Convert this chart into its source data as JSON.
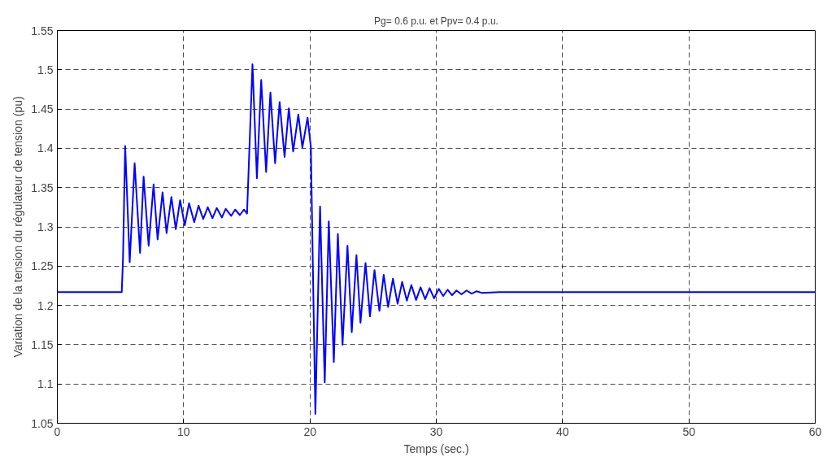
{
  "chart_data": {
    "type": "line",
    "title": "Pg= 0.6 p.u. et Ppv= 0.4 p.u.",
    "xlabel": "Temps (sec.)",
    "ylabel": "Variation de la tension du régulateur de tension (pu)",
    "xlim": [
      0,
      60
    ],
    "ylim": [
      1.05,
      1.55
    ],
    "xticks": [
      0,
      10,
      20,
      30,
      40,
      50,
      60
    ],
    "yticks": [
      1.05,
      1.1,
      1.15,
      1.2,
      1.25,
      1.3,
      1.35,
      1.4,
      1.45,
      1.5,
      1.55
    ],
    "grid": true,
    "marker": "none",
    "line_style": "solid",
    "series": [
      {
        "color": "#0000ff",
        "x": [
          0,
          5.1,
          5.2,
          5.37,
          5.73,
          6.12,
          6.55,
          6.83,
          7.23,
          7.62,
          7.94,
          8.33,
          8.65,
          9.03,
          9.38,
          9.72,
          10.09,
          10.43,
          10.84,
          11.18,
          11.55,
          11.91,
          12.28,
          12.62,
          13.03,
          13.33,
          13.76,
          14.08,
          14.45,
          14.77,
          15.02,
          15.45,
          15.8,
          16.14,
          16.53,
          16.87,
          17.24,
          17.6,
          17.99,
          18.33,
          18.67,
          19.08,
          19.4,
          19.81,
          20.07,
          20.43,
          20.8,
          21.17,
          21.49,
          21.89,
          22.21,
          22.58,
          22.97,
          23.31,
          23.68,
          24.0,
          24.4,
          24.75,
          25.11,
          25.5,
          25.84,
          26.19,
          26.57,
          26.94,
          27.3,
          27.67,
          28.03,
          28.4,
          28.76,
          29.12,
          29.47,
          29.83,
          30.2,
          30.55,
          30.9,
          31.25,
          31.6,
          32.0,
          32.4,
          32.8,
          33.2,
          33.6,
          35,
          60
        ],
        "values": [
          1.217,
          1.217,
          1.26,
          1.403,
          1.255,
          1.381,
          1.267,
          1.364,
          1.276,
          1.354,
          1.284,
          1.344,
          1.292,
          1.338,
          1.297,
          1.334,
          1.302,
          1.33,
          1.306,
          1.327,
          1.31,
          1.325,
          1.311,
          1.324,
          1.312,
          1.323,
          1.314,
          1.322,
          1.315,
          1.322,
          1.317,
          1.507,
          1.362,
          1.487,
          1.37,
          1.471,
          1.381,
          1.459,
          1.389,
          1.451,
          1.396,
          1.443,
          1.401,
          1.439,
          1.402,
          1.062,
          1.326,
          1.102,
          1.307,
          1.128,
          1.291,
          1.15,
          1.276,
          1.166,
          1.264,
          1.178,
          1.254,
          1.186,
          1.245,
          1.193,
          1.239,
          1.198,
          1.234,
          1.202,
          1.23,
          1.206,
          1.226,
          1.207,
          1.223,
          1.208,
          1.222,
          1.209,
          1.221,
          1.212,
          1.22,
          1.213,
          1.219,
          1.214,
          1.219,
          1.215,
          1.218,
          1.216,
          1.217,
          1.217
        ]
      }
    ]
  }
}
